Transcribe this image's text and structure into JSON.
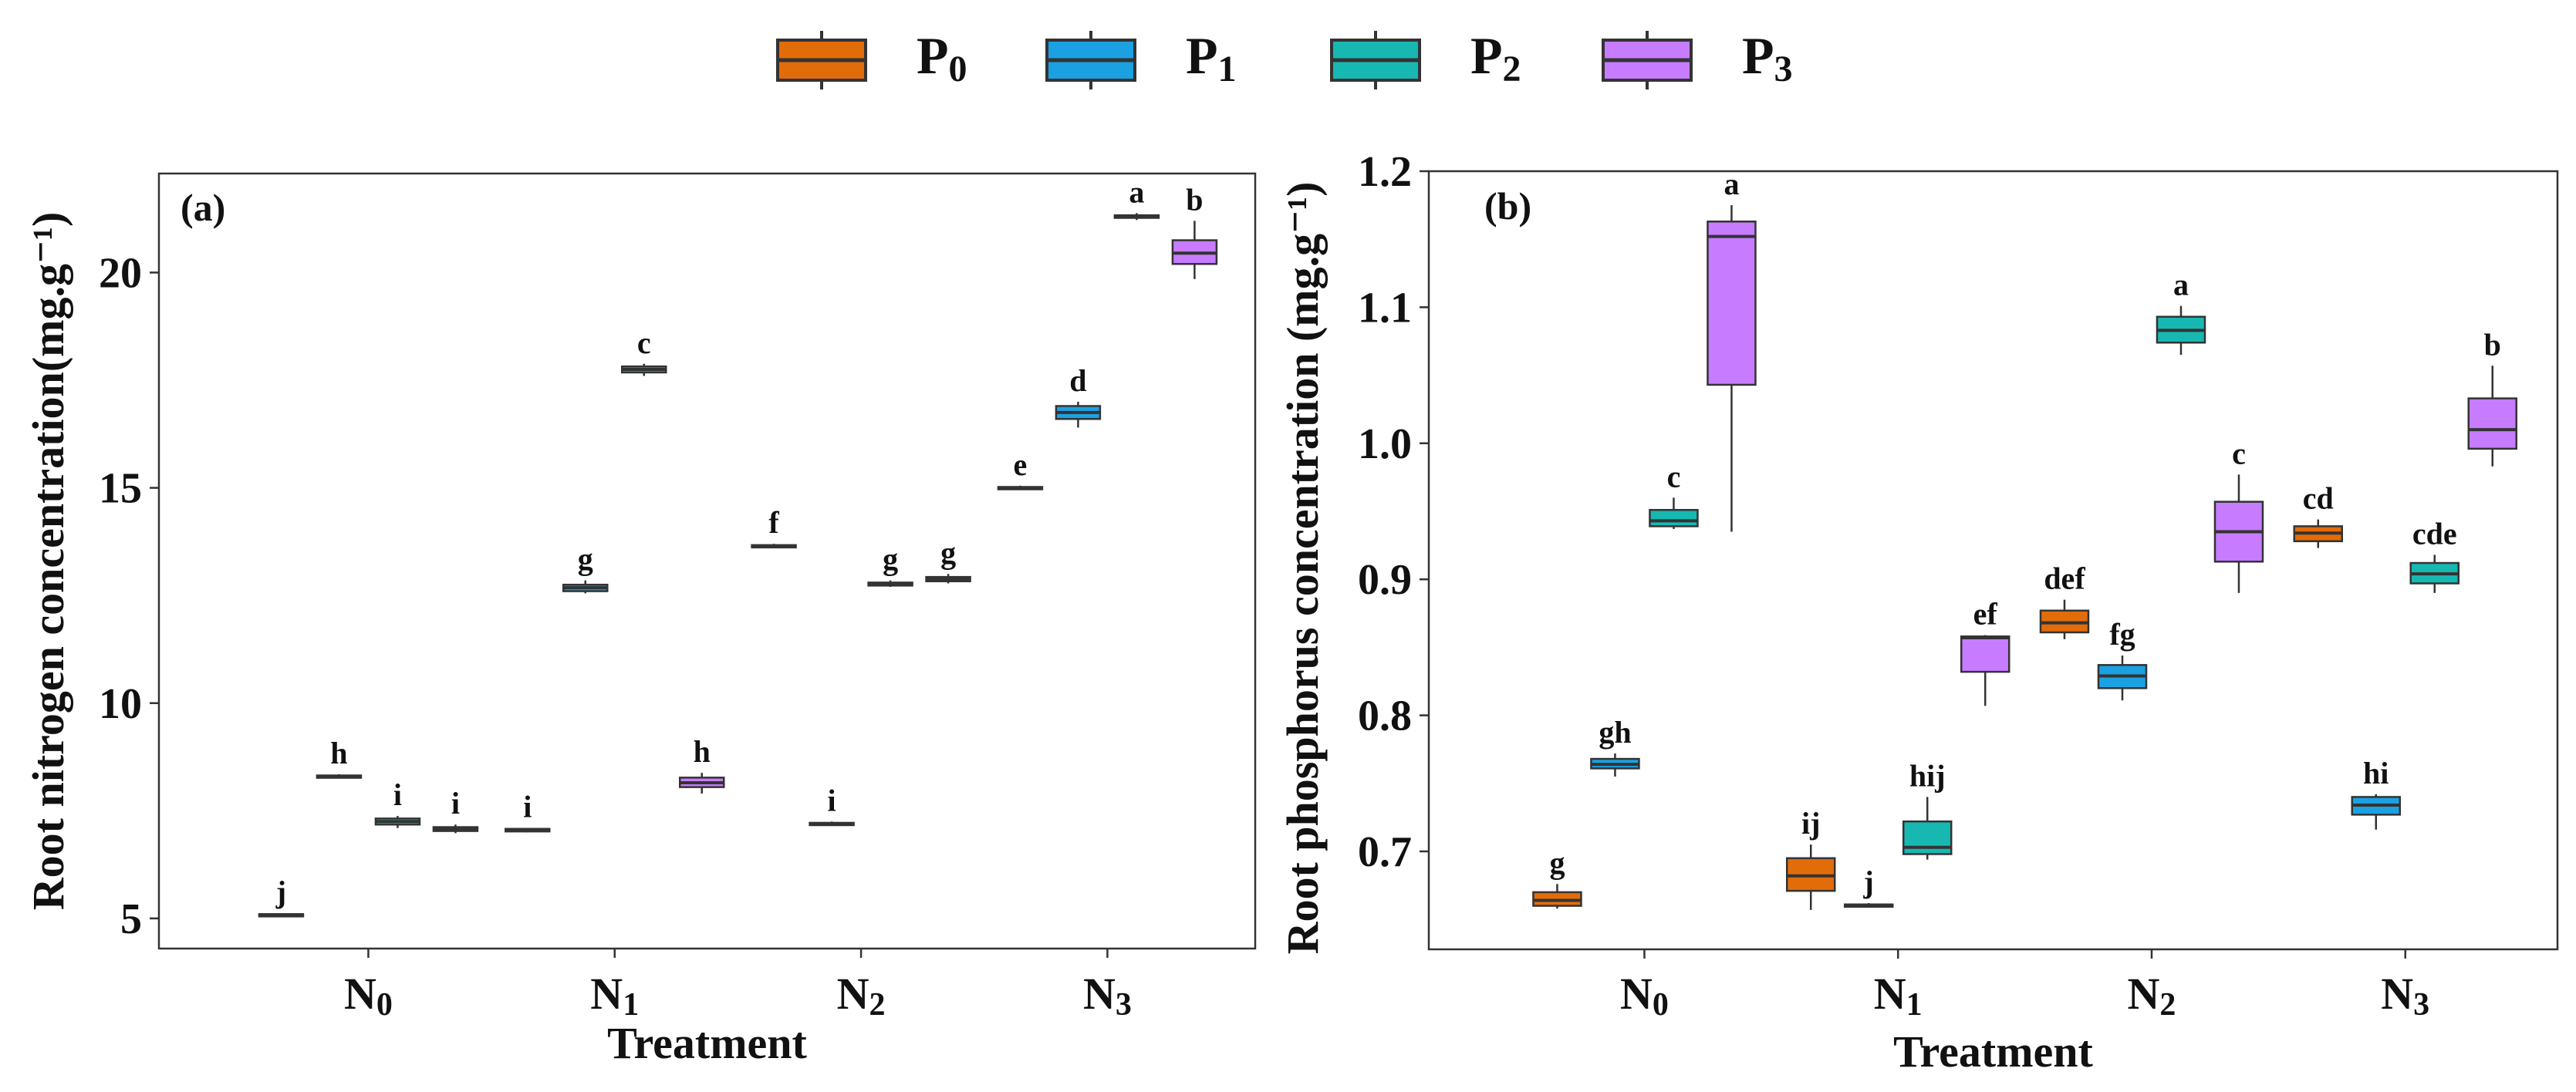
{
  "legend": [
    {
      "base": "P",
      "sub": "0",
      "color": "#E36C0A"
    },
    {
      "base": "P",
      "sub": "1",
      "color": "#1BA1E2"
    },
    {
      "base": "P",
      "sub": "2",
      "color": "#17B8B2"
    },
    {
      "base": "P",
      "sub": "3",
      "color": "#C77CFF"
    }
  ],
  "chart_data": [
    {
      "type": "box",
      "panel_label": "(a)",
      "xlabel": "Treatment",
      "ylabel": "Root nitrogen concentration(mg.g⁻¹)",
      "ylim": [
        4.3,
        22.3
      ],
      "yticks": [
        "5",
        "10",
        "15",
        "20"
      ],
      "categories": [
        {
          "base": "N",
          "sub": "0"
        },
        {
          "base": "N",
          "sub": "1"
        },
        {
          "base": "N",
          "sub": "2"
        },
        {
          "base": "N",
          "sub": "3"
        }
      ],
      "series": [
        {
          "name": "P0",
          "boxes": [
            {
              "min": 5.03,
              "q1": 5.06,
              "median": 5.08,
              "q3": 5.1,
              "max": 5.12,
              "label": "j"
            },
            {
              "min": 7.0,
              "q1": 7.02,
              "median": 7.05,
              "q3": 7.08,
              "max": 7.1,
              "label": "i"
            },
            {
              "min": 13.6,
              "q1": 13.63,
              "median": 13.65,
              "q3": 13.67,
              "max": 13.7,
              "label": "f"
            },
            {
              "min": 14.95,
              "q1": 14.97,
              "median": 15.0,
              "q3": 15.02,
              "max": 15.05,
              "label": "e"
            }
          ]
        },
        {
          "name": "P1",
          "boxes": [
            {
              "min": 8.25,
              "q1": 8.28,
              "median": 8.3,
              "q3": 8.32,
              "max": 8.35,
              "label": "h"
            },
            {
              "min": 12.55,
              "q1": 12.6,
              "median": 12.68,
              "q3": 12.75,
              "max": 12.85,
              "label": "g"
            },
            {
              "min": 7.15,
              "q1": 7.17,
              "median": 7.2,
              "q3": 7.22,
              "max": 7.25,
              "label": "i"
            },
            {
              "min": 16.4,
              "q1": 16.6,
              "median": 16.75,
              "q3": 16.9,
              "max": 17.0,
              "label": "d"
            }
          ]
        },
        {
          "name": "P2",
          "boxes": [
            {
              "min": 7.1,
              "q1": 7.18,
              "median": 7.25,
              "q3": 7.32,
              "max": 7.38,
              "label": "i"
            },
            {
              "min": 17.6,
              "q1": 17.68,
              "median": 17.75,
              "q3": 17.82,
              "max": 17.88,
              "label": "c"
            },
            {
              "min": 12.7,
              "q1": 12.73,
              "median": 12.77,
              "q3": 12.8,
              "max": 12.85,
              "label": "g"
            },
            {
              "min": 21.22,
              "q1": 21.27,
              "median": 21.3,
              "q3": 21.33,
              "max": 21.38,
              "label": "a"
            }
          ]
        },
        {
          "name": "P3",
          "boxes": [
            {
              "min": 6.98,
              "q1": 7.03,
              "median": 7.08,
              "q3": 7.12,
              "max": 7.18,
              "label": "i"
            },
            {
              "min": 7.9,
              "q1": 8.05,
              "median": 8.15,
              "q3": 8.27,
              "max": 8.38,
              "label": "h"
            },
            {
              "min": 12.78,
              "q1": 12.83,
              "median": 12.88,
              "q3": 12.93,
              "max": 13.0,
              "label": "g"
            },
            {
              "min": 19.85,
              "q1": 20.2,
              "median": 20.45,
              "q3": 20.75,
              "max": 21.2,
              "label": "b"
            }
          ]
        }
      ]
    },
    {
      "type": "box",
      "panel_label": "(b)",
      "xlabel": "Treatment",
      "ylabel": "Root phosphorus concentration (mg.g⁻¹)",
      "ylim": [
        0.628,
        1.2
      ],
      "yticks": [
        "0.7",
        "0.8",
        "0.9",
        "1.0",
        "1.1",
        "1.2"
      ],
      "categories": [
        {
          "base": "N",
          "sub": "0"
        },
        {
          "base": "N",
          "sub": "1"
        },
        {
          "base": "N",
          "sub": "2"
        },
        {
          "base": "N",
          "sub": "3"
        }
      ],
      "series": [
        {
          "name": "P0",
          "boxes": [
            {
              "min": 0.658,
              "q1": 0.66,
              "median": 0.664,
              "q3": 0.67,
              "max": 0.676,
              "label": "g"
            },
            {
              "min": 0.657,
              "q1": 0.671,
              "median": 0.682,
              "q3": 0.695,
              "max": 0.705,
              "label": "ij"
            },
            {
              "min": 0.856,
              "q1": 0.861,
              "median": 0.868,
              "q3": 0.877,
              "max": 0.885,
              "label": "def"
            },
            {
              "min": 0.923,
              "q1": 0.928,
              "median": 0.934,
              "q3": 0.939,
              "max": 0.944,
              "label": "cd"
            }
          ]
        },
        {
          "name": "P1",
          "boxes": [
            {
              "min": 0.755,
              "q1": 0.761,
              "median": 0.764,
              "q3": 0.768,
              "max": 0.772,
              "label": "gh"
            },
            {
              "min": 0.659,
              "q1": 0.66,
              "median": 0.66,
              "q3": 0.661,
              "max": 0.662,
              "label": "j"
            },
            {
              "min": 0.811,
              "q1": 0.82,
              "median": 0.829,
              "q3": 0.837,
              "max": 0.844,
              "label": "fg"
            },
            {
              "min": 0.716,
              "q1": 0.727,
              "median": 0.734,
              "q3": 0.74,
              "max": 0.742,
              "label": "hi"
            }
          ]
        },
        {
          "name": "P2",
          "boxes": [
            {
              "min": 0.937,
              "q1": 0.939,
              "median": 0.943,
              "q3": 0.951,
              "max": 0.96,
              "label": "c"
            },
            {
              "min": 0.694,
              "q1": 0.698,
              "median": 0.703,
              "q3": 0.722,
              "max": 0.74,
              "label": "hij"
            },
            {
              "min": 1.065,
              "q1": 1.074,
              "median": 1.083,
              "q3": 1.093,
              "max": 1.101,
              "label": "a"
            },
            {
              "min": 0.89,
              "q1": 0.897,
              "median": 0.904,
              "q3": 0.912,
              "max": 0.918,
              "label": "cde"
            }
          ]
        },
        {
          "name": "P3",
          "boxes": [
            {
              "min": 0.935,
              "q1": 1.043,
              "median": 1.152,
              "q3": 1.163,
              "max": 1.175,
              "label": "a"
            },
            {
              "min": 0.807,
              "q1": 0.832,
              "median": 0.857,
              "q3": 0.858,
              "max": 0.859,
              "label": "ef"
            },
            {
              "min": 0.89,
              "q1": 0.913,
              "median": 0.935,
              "q3": 0.957,
              "max": 0.977,
              "label": "c"
            },
            {
              "min": 0.983,
              "q1": 0.996,
              "median": 1.01,
              "q3": 1.033,
              "max": 1.057,
              "label": "b"
            }
          ]
        }
      ]
    }
  ]
}
